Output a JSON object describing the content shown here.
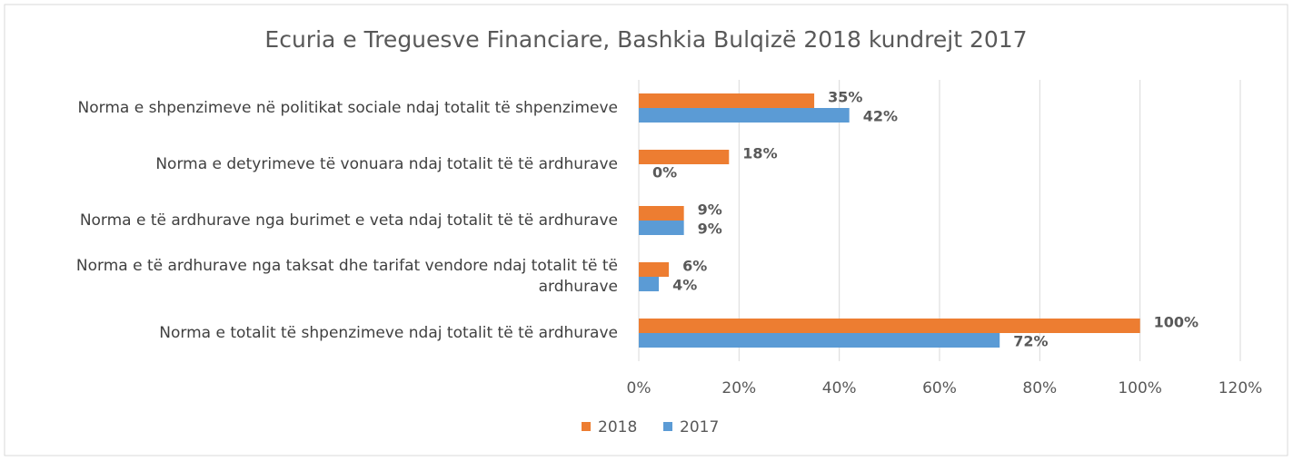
{
  "chart_data": {
    "type": "barh",
    "title": "Ecuria e Treguesve Financiare, Bashkia Bulqizë 2018 kundrejt 2017",
    "categories": [
      "Norma e shpenzimeve në politikat sociale ndaj totalit të shpenzimeve",
      "Norma e detyrimeve të vonuara ndaj totalit të të ardhurave",
      "Norma e të ardhurave nga burimet e veta ndaj totalit të të ardhurave",
      "Norma e të ardhurave nga taksat dhe tarifat vendore ndaj totalit të të ardhurave",
      "Norma e totalit të shpenzimeve ndaj totalit të të ardhurave"
    ],
    "series": [
      {
        "name": "2018",
        "color": "#ed7d31",
        "values": [
          35,
          18,
          9,
          6,
          100
        ],
        "value_labels": [
          "35%",
          "18%",
          "9%",
          "6%",
          "100%"
        ]
      },
      {
        "name": "2017",
        "color": "#5b9bd5",
        "values": [
          42,
          0,
          9,
          4,
          72
        ],
        "value_labels": [
          "42%",
          "0%",
          "9%",
          "4%",
          "72%"
        ]
      }
    ],
    "xlim": [
      0,
      120
    ],
    "xticks": [
      {
        "value": 0,
        "label": "0%"
      },
      {
        "value": 20,
        "label": "20%"
      },
      {
        "value": 40,
        "label": "40%"
      },
      {
        "value": 60,
        "label": "60%"
      },
      {
        "value": 80,
        "label": "80%"
      },
      {
        "value": 100,
        "label": "100%"
      },
      {
        "value": 120,
        "label": "120%"
      }
    ],
    "grid": true,
    "legend": "bottom"
  }
}
